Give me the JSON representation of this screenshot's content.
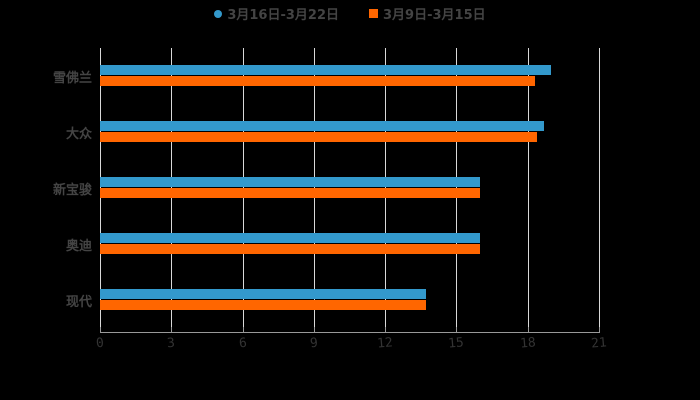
{
  "chart_data": {
    "type": "bar",
    "orientation": "horizontal",
    "title": "",
    "xlabel": "",
    "ylabel": "",
    "categories": [
      "雪佛兰",
      "大众",
      "新宝骏",
      "奥迪",
      "现代"
    ],
    "series": [
      {
        "name": "3月16日-3月22日",
        "color": "#3399cc",
        "values": [
          19.0,
          18.7,
          16.0,
          16.0,
          13.7
        ]
      },
      {
        "name": "3月9日-3月15日",
        "color": "#ff6600",
        "values": [
          18.3,
          18.4,
          16.0,
          16.0,
          13.7
        ]
      }
    ],
    "xlim": [
      0,
      21
    ],
    "xticks": [
      "0",
      "3",
      "6",
      "9",
      "12",
      "15",
      "18",
      "21"
    ],
    "grid": true,
    "legend_position": "top"
  },
  "legend": {
    "series1": "3月16日-3月22日",
    "series2": "3月9日-3月15日"
  }
}
